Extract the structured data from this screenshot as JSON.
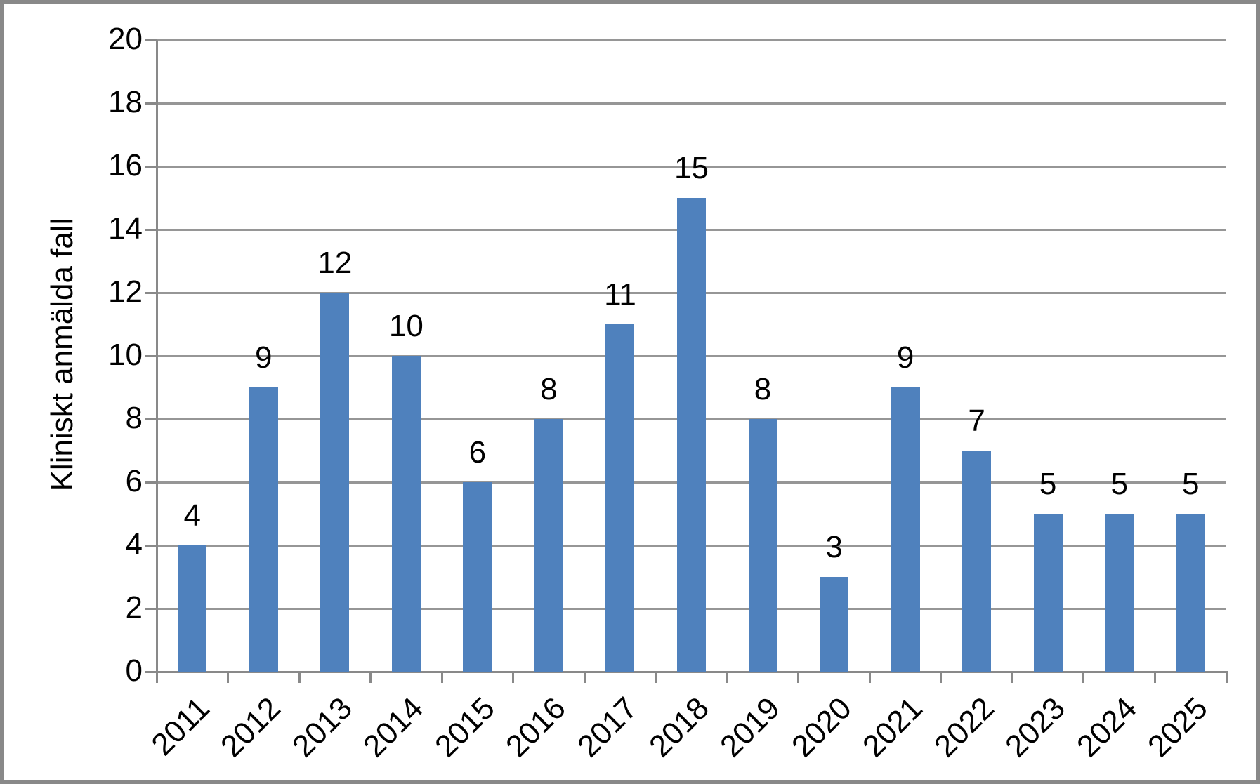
{
  "chart_data": {
    "type": "bar",
    "categories": [
      "2011",
      "2012",
      "2013",
      "2014",
      "2015",
      "2016",
      "2017",
      "2018",
      "2019",
      "2020",
      "2021",
      "2022",
      "2023",
      "2024",
      "2025"
    ],
    "values": [
      4,
      9,
      12,
      10,
      6,
      8,
      11,
      15,
      8,
      3,
      9,
      7,
      5,
      5,
      5
    ],
    "title": "",
    "xlabel": "",
    "ylabel": "Kliniskt anmälda fall",
    "ylim": [
      0,
      20
    ],
    "yticks": [
      0,
      2,
      4,
      6,
      8,
      10,
      12,
      14,
      16,
      18,
      20
    ],
    "grid": "horizontal",
    "legend": "none",
    "data_labels": true,
    "x_label_rotation_deg": 45
  },
  "colors": {
    "bar_fill": "#4F81BD",
    "gridline": "#969696",
    "axis": "#898989",
    "frame_border": "#898989",
    "text": "#000000",
    "background": "#FFFFFF"
  }
}
